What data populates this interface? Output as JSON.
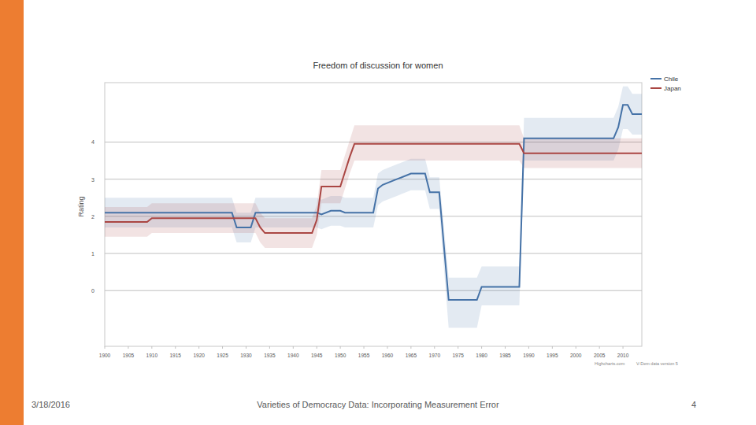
{
  "slide": {
    "date": "3/18/2016",
    "footer": "Varieties of Democracy Data: Incorporating Measurement Error",
    "page": 4
  },
  "chart_data": {
    "type": "line",
    "title": "Freedom of discussion for women",
    "y_label": "Rating",
    "credits": [
      "Highcharts.com",
      "V-Dem data version 5"
    ],
    "x": [
      1900,
      1909,
      1910,
      1927,
      1928,
      1931,
      1932,
      1933,
      1934,
      1944,
      1945,
      1946,
      1948,
      1950,
      1951,
      1952,
      1953,
      1957,
      1958,
      1959,
      1962,
      1965,
      1968,
      1969,
      1971,
      1973,
      1979,
      1980,
      1987,
      1988,
      1989,
      2008,
      2009,
      2010,
      2011,
      2012,
      2014
    ],
    "xlim": [
      1900,
      2014
    ],
    "xticks": [
      1900,
      1905,
      1910,
      1915,
      1920,
      1925,
      1930,
      1935,
      1940,
      1945,
      1950,
      1955,
      1960,
      1965,
      1970,
      1975,
      1980,
      1985,
      1990,
      1995,
      2000,
      2005,
      2010
    ],
    "ylim": [
      -1.5,
      5.6
    ],
    "yticks": [
      0,
      1,
      2,
      3,
      4
    ],
    "grid": true,
    "legend": "top-right",
    "series": [
      {
        "name": "Chile",
        "color": "#4572a7",
        "line_style": "solid",
        "values": [
          2.1,
          2.1,
          2.1,
          2.1,
          1.7,
          1.7,
          2.1,
          2.1,
          2.1,
          2.1,
          2.1,
          2.05,
          2.15,
          2.15,
          2.1,
          2.1,
          2.1,
          2.1,
          2.75,
          2.85,
          3.0,
          3.15,
          3.15,
          2.65,
          2.65,
          -0.25,
          -0.25,
          0.1,
          0.1,
          0.1,
          4.1,
          4.1,
          4.4,
          5.0,
          5.0,
          4.75,
          4.75
        ],
        "lower": [
          1.7,
          1.7,
          1.7,
          1.7,
          1.3,
          1.3,
          1.7,
          1.7,
          1.7,
          1.7,
          1.7,
          1.65,
          1.75,
          1.75,
          1.7,
          1.7,
          1.7,
          1.7,
          2.3,
          2.4,
          2.55,
          2.7,
          2.7,
          2.2,
          2.2,
          -1.0,
          -1.0,
          -0.4,
          -0.4,
          -0.4,
          3.5,
          3.5,
          3.8,
          4.35,
          4.35,
          4.2,
          4.2
        ],
        "upper": [
          2.5,
          2.5,
          2.5,
          2.5,
          2.1,
          2.1,
          2.5,
          2.5,
          2.5,
          2.5,
          2.5,
          2.45,
          2.55,
          2.55,
          2.5,
          2.5,
          2.5,
          2.5,
          3.15,
          3.25,
          3.4,
          3.55,
          3.55,
          3.05,
          3.05,
          0.35,
          0.35,
          0.65,
          0.65,
          0.65,
          4.65,
          4.65,
          4.95,
          5.5,
          5.5,
          5.3,
          5.3
        ]
      },
      {
        "name": "Japan",
        "color": "#aa4643",
        "line_style": "solid",
        "values": [
          1.85,
          1.85,
          1.95,
          1.95,
          1.95,
          1.95,
          1.95,
          1.7,
          1.55,
          1.55,
          1.9,
          2.8,
          2.8,
          2.8,
          3.2,
          3.6,
          3.95,
          3.95,
          3.95,
          3.95,
          3.95,
          3.95,
          3.95,
          3.95,
          3.95,
          3.95,
          3.95,
          3.95,
          3.95,
          3.95,
          3.7,
          3.7,
          3.7,
          3.7,
          3.7,
          3.7,
          3.7
        ],
        "lower": [
          1.45,
          1.45,
          1.55,
          1.55,
          1.55,
          1.55,
          1.55,
          1.3,
          1.15,
          1.15,
          1.5,
          2.35,
          2.35,
          2.35,
          2.75,
          3.15,
          3.5,
          3.5,
          3.5,
          3.5,
          3.5,
          3.5,
          3.5,
          3.5,
          3.5,
          3.5,
          3.5,
          3.5,
          3.5,
          3.5,
          3.3,
          3.3,
          3.3,
          3.3,
          3.3,
          3.3,
          3.3
        ],
        "upper": [
          2.25,
          2.25,
          2.35,
          2.35,
          2.35,
          2.35,
          2.35,
          2.1,
          1.95,
          1.95,
          2.3,
          3.25,
          3.25,
          3.25,
          3.65,
          4.05,
          4.45,
          4.45,
          4.45,
          4.45,
          4.45,
          4.45,
          4.45,
          4.45,
          4.45,
          4.45,
          4.45,
          4.45,
          4.45,
          4.45,
          4.1,
          4.1,
          4.1,
          4.1,
          4.1,
          4.1,
          4.1
        ]
      }
    ]
  }
}
